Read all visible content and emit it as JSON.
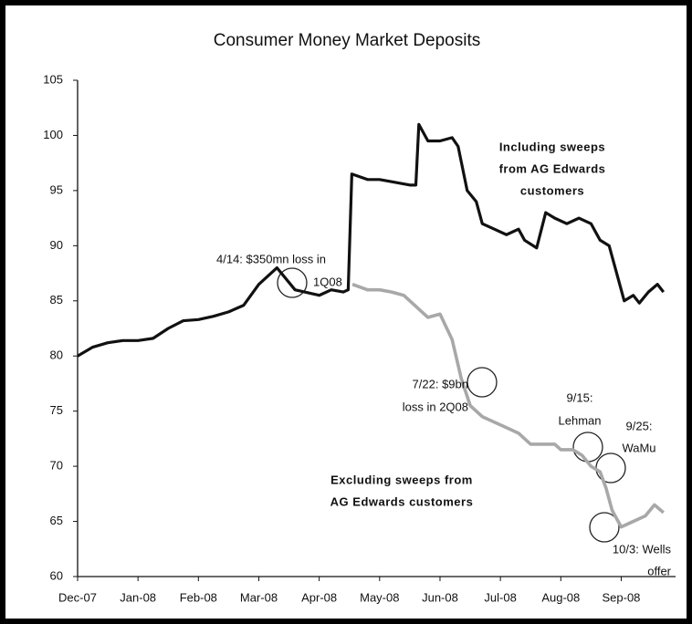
{
  "chart_data": {
    "type": "line",
    "title": "Consumer Money Market Deposits",
    "xlim": [
      0,
      9.9
    ],
    "xticks": [
      {
        "value": 0,
        "label": "Dec-07"
      },
      {
        "value": 1,
        "label": "Jan-08"
      },
      {
        "value": 2,
        "label": "Feb-08"
      },
      {
        "value": 3,
        "label": "Mar-08"
      },
      {
        "value": 4,
        "label": "Apr-08"
      },
      {
        "value": 5,
        "label": "May-08"
      },
      {
        "value": 6,
        "label": "Jun-08"
      },
      {
        "value": 7,
        "label": "Jul-08"
      },
      {
        "value": 8,
        "label": "Aug-08"
      },
      {
        "value": 9,
        "label": "Sep-08"
      }
    ],
    "ylim": [
      60,
      105
    ],
    "yticks": [
      60,
      65,
      70,
      75,
      80,
      85,
      90,
      95,
      100,
      105
    ],
    "grid": false,
    "series": [
      {
        "name": "Including sweeps from AG Edwards customers",
        "color": "#111111",
        "x": [
          0,
          0.25,
          0.5,
          0.75,
          1.0,
          1.25,
          1.5,
          1.75,
          2.0,
          2.25,
          2.5,
          2.75,
          3.0,
          3.3,
          3.6,
          4.0,
          4.2,
          4.4,
          4.48,
          4.54,
          4.8,
          5.0,
          5.2,
          5.5,
          5.6,
          5.65,
          5.8,
          6.0,
          6.2,
          6.3,
          6.45,
          6.6,
          6.7,
          6.9,
          7.1,
          7.3,
          7.4,
          7.6,
          7.75,
          7.9,
          8.1,
          8.3,
          8.5,
          8.65,
          8.8,
          8.95,
          9.05,
          9.2,
          9.3,
          9.45,
          9.6,
          9.7
        ],
        "values": [
          80,
          80.8,
          81.2,
          81.4,
          81.4,
          81.6,
          82.5,
          83.2,
          83.3,
          83.6,
          84.0,
          84.6,
          86.5,
          88,
          86,
          85.5,
          86,
          85.8,
          86,
          96.5,
          96,
          96,
          95.8,
          95.5,
          95.5,
          101,
          99.5,
          99.5,
          99.8,
          99,
          95,
          94,
          92,
          91.5,
          91,
          91.5,
          90.5,
          89.8,
          93,
          92.5,
          92,
          92.5,
          92,
          90.5,
          90,
          87,
          85,
          85.5,
          84.8,
          85.8,
          86.5,
          85.8
        ]
      },
      {
        "name": "Excluding sweeps from AG Edwards customers",
        "color": "#a8a8a8",
        "x": [
          4.55,
          4.8,
          5.0,
          5.2,
          5.4,
          5.6,
          5.8,
          6.0,
          6.2,
          6.35,
          6.5,
          6.7,
          6.9,
          7.1,
          7.3,
          7.5,
          7.7,
          7.9,
          8.0,
          8.2,
          8.35,
          8.5,
          8.65,
          8.75,
          8.85,
          9.0,
          9.2,
          9.4,
          9.55,
          9.7
        ],
        "values": [
          86.5,
          86,
          86,
          85.8,
          85.5,
          84.5,
          83.5,
          83.8,
          81.5,
          78,
          75.5,
          74.5,
          74,
          73.5,
          73,
          72,
          72,
          72,
          71.5,
          71.5,
          71,
          70,
          69.5,
          68,
          66,
          64.5,
          65,
          65.5,
          66.5,
          65.8
        ]
      }
    ],
    "annotations": [
      {
        "lines": [
          "Including sweeps",
          "from AG Edwards",
          "customers"
        ]
      },
      {
        "lines": [
          "Excluding sweeps from",
          "AG Edwards customers"
        ]
      },
      {
        "lines": [
          "4/14: $350mn loss in",
          "1Q08"
        ]
      },
      {
        "lines": [
          "7/22: $9bn",
          "loss in 2Q08"
        ]
      },
      {
        "lines": [
          "9/15:",
          "Lehman"
        ]
      },
      {
        "lines": [
          "9/25:",
          "WaMu"
        ]
      },
      {
        "lines": [
          "10/3:  Wells",
          "offer"
        ]
      }
    ]
  }
}
